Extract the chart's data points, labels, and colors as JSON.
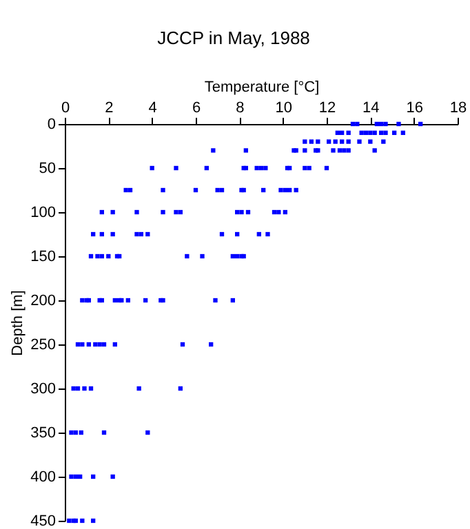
{
  "chart_data": {
    "type": "scatter",
    "title": "JCCP in May, 1988",
    "xlabel": "Temperature [°C]",
    "ylabel": "Depth [m]",
    "xlim": [
      0,
      18
    ],
    "xticks": [
      0,
      2,
      4,
      6,
      8,
      10,
      12,
      14,
      16,
      18
    ],
    "ylim": [
      450,
      0
    ],
    "yticks": [
      0,
      50,
      100,
      150,
      200,
      250,
      300,
      350,
      400,
      450
    ],
    "marker": "square",
    "grid": false,
    "series": [
      {
        "color": "#0000ff",
        "x": [
          13.2,
          13.4,
          14.3,
          14.5,
          14.7,
          15.3,
          16.3,
          12.5,
          12.7,
          13.0,
          13.6,
          13.8,
          14.0,
          14.2,
          14.5,
          14.7,
          15.1,
          15.5,
          11.0,
          11.3,
          11.6,
          12.1,
          12.4,
          12.7,
          13.0,
          13.5,
          14.0,
          14.6,
          6.8,
          8.3,
          10.5,
          10.6,
          11.0,
          11.5,
          11.6,
          12.3,
          12.6,
          12.8,
          13.0,
          14.2,
          4.0,
          5.1,
          6.5,
          8.2,
          8.3,
          8.8,
          9.0,
          9.2,
          10.2,
          10.3,
          11.0,
          11.2,
          12.0,
          2.8,
          3.0,
          4.5,
          6.0,
          7.0,
          7.2,
          8.1,
          8.2,
          9.1,
          9.9,
          10.1,
          10.3,
          10.6,
          1.7,
          2.2,
          3.3,
          4.5,
          5.1,
          5.3,
          7.9,
          8.1,
          8.4,
          9.6,
          9.8,
          10.1,
          1.3,
          1.7,
          2.2,
          3.3,
          3.5,
          3.8,
          7.2,
          7.9,
          8.9,
          9.3,
          1.2,
          1.5,
          1.7,
          2.0,
          2.4,
          2.5,
          5.6,
          6.3,
          7.7,
          7.9,
          8.1,
          8.2,
          0.8,
          1.0,
          1.1,
          1.6,
          1.7,
          2.3,
          2.5,
          2.6,
          2.9,
          3.7,
          4.4,
          4.5,
          6.9,
          7.7,
          0.6,
          0.8,
          1.1,
          1.4,
          1.6,
          1.8,
          2.3,
          5.4,
          6.7,
          0.4,
          0.6,
          0.9,
          1.2,
          3.4,
          5.3,
          0.3,
          0.5,
          0.75,
          1.8,
          3.8,
          0.3,
          0.5,
          0.7,
          1.3,
          2.2,
          0.2,
          0.4,
          0.5,
          0.8,
          1.3
        ],
        "values": [
          0,
          0,
          0,
          0,
          0,
          0,
          0,
          10,
          10,
          10,
          10,
          10,
          10,
          10,
          10,
          10,
          10,
          10,
          20,
          20,
          20,
          20,
          20,
          20,
          20,
          20,
          20,
          20,
          30,
          30,
          30,
          30,
          30,
          30,
          30,
          30,
          30,
          30,
          30,
          30,
          50,
          50,
          50,
          50,
          50,
          50,
          50,
          50,
          50,
          50,
          50,
          50,
          50,
          75,
          75,
          75,
          75,
          75,
          75,
          75,
          75,
          75,
          75,
          75,
          75,
          75,
          100,
          100,
          100,
          100,
          100,
          100,
          100,
          100,
          100,
          100,
          100,
          100,
          125,
          125,
          125,
          125,
          125,
          125,
          125,
          125,
          125,
          125,
          150,
          150,
          150,
          150,
          150,
          150,
          150,
          150,
          150,
          150,
          150,
          150,
          200,
          200,
          200,
          200,
          200,
          200,
          200,
          200,
          200,
          200,
          200,
          200,
          200,
          200,
          250,
          250,
          250,
          250,
          250,
          250,
          250,
          250,
          250,
          300,
          300,
          300,
          300,
          300,
          300,
          350,
          350,
          350,
          350,
          350,
          400,
          400,
          400,
          400,
          400,
          450,
          450,
          450,
          450,
          450
        ]
      }
    ]
  }
}
